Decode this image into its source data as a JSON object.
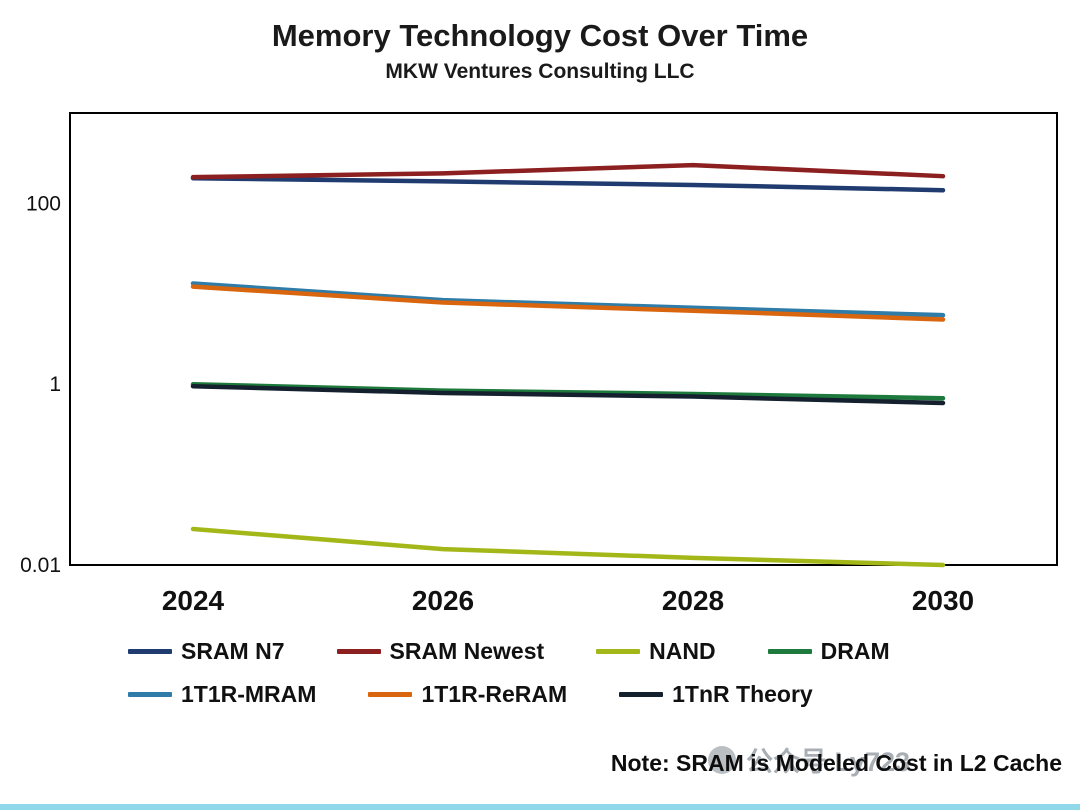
{
  "title": "Memory Technology Cost Over Time",
  "subtitle": "MKW Ventures Consulting LLC",
  "note": "Note: SRAM is Modeled Cost in L2 Cache",
  "watermark": "公众号 Ly723",
  "chart_data": {
    "type": "line",
    "title": "Memory Technology Cost Over Time",
    "subtitle": "MKW Ventures Consulting LLC",
    "xlabel": "",
    "ylabel": "",
    "x": [
      2024,
      2026,
      2028,
      2030
    ],
    "x_tick_labels": [
      "2024",
      "2026",
      "2028",
      "2030"
    ],
    "y_scale": "log",
    "ylim": [
      0.01,
      1000
    ],
    "y_ticks": [
      {
        "value": 100,
        "label": "100"
      },
      {
        "value": 1,
        "label": "1"
      },
      {
        "value": 0.01,
        "label": "0.01"
      }
    ],
    "grid": false,
    "legend_position": "bottom",
    "series": [
      {
        "name": "SRAM N7",
        "color": "#1f3b70",
        "values": [
          190,
          175,
          160,
          140
        ]
      },
      {
        "name": "SRAM Newest",
        "color": "#8c1f1f",
        "values": [
          195,
          215,
          265,
          200
        ]
      },
      {
        "name": "NAND",
        "color": "#a3b818",
        "values": [
          0.025,
          0.015,
          0.012,
          0.01
        ]
      },
      {
        "name": "DRAM",
        "color": "#1d7a3c",
        "values": [
          1.0,
          0.85,
          0.78,
          0.7
        ]
      },
      {
        "name": "1T1R-MRAM",
        "color": "#2f7ca8",
        "values": [
          13,
          8.5,
          7.0,
          5.8
        ]
      },
      {
        "name": "1T1R-ReRAM",
        "color": "#d9650e",
        "values": [
          12,
          8.0,
          6.5,
          5.2
        ]
      },
      {
        "name": "1TnR Theory",
        "color": "#14202e",
        "values": [
          0.95,
          0.8,
          0.73,
          0.62
        ]
      }
    ],
    "legend_rows": [
      [
        "SRAM N7",
        "SRAM Newest",
        "NAND",
        "DRAM"
      ],
      [
        "1T1R-MRAM",
        "1T1R-ReRAM",
        "1TnR Theory"
      ]
    ]
  }
}
